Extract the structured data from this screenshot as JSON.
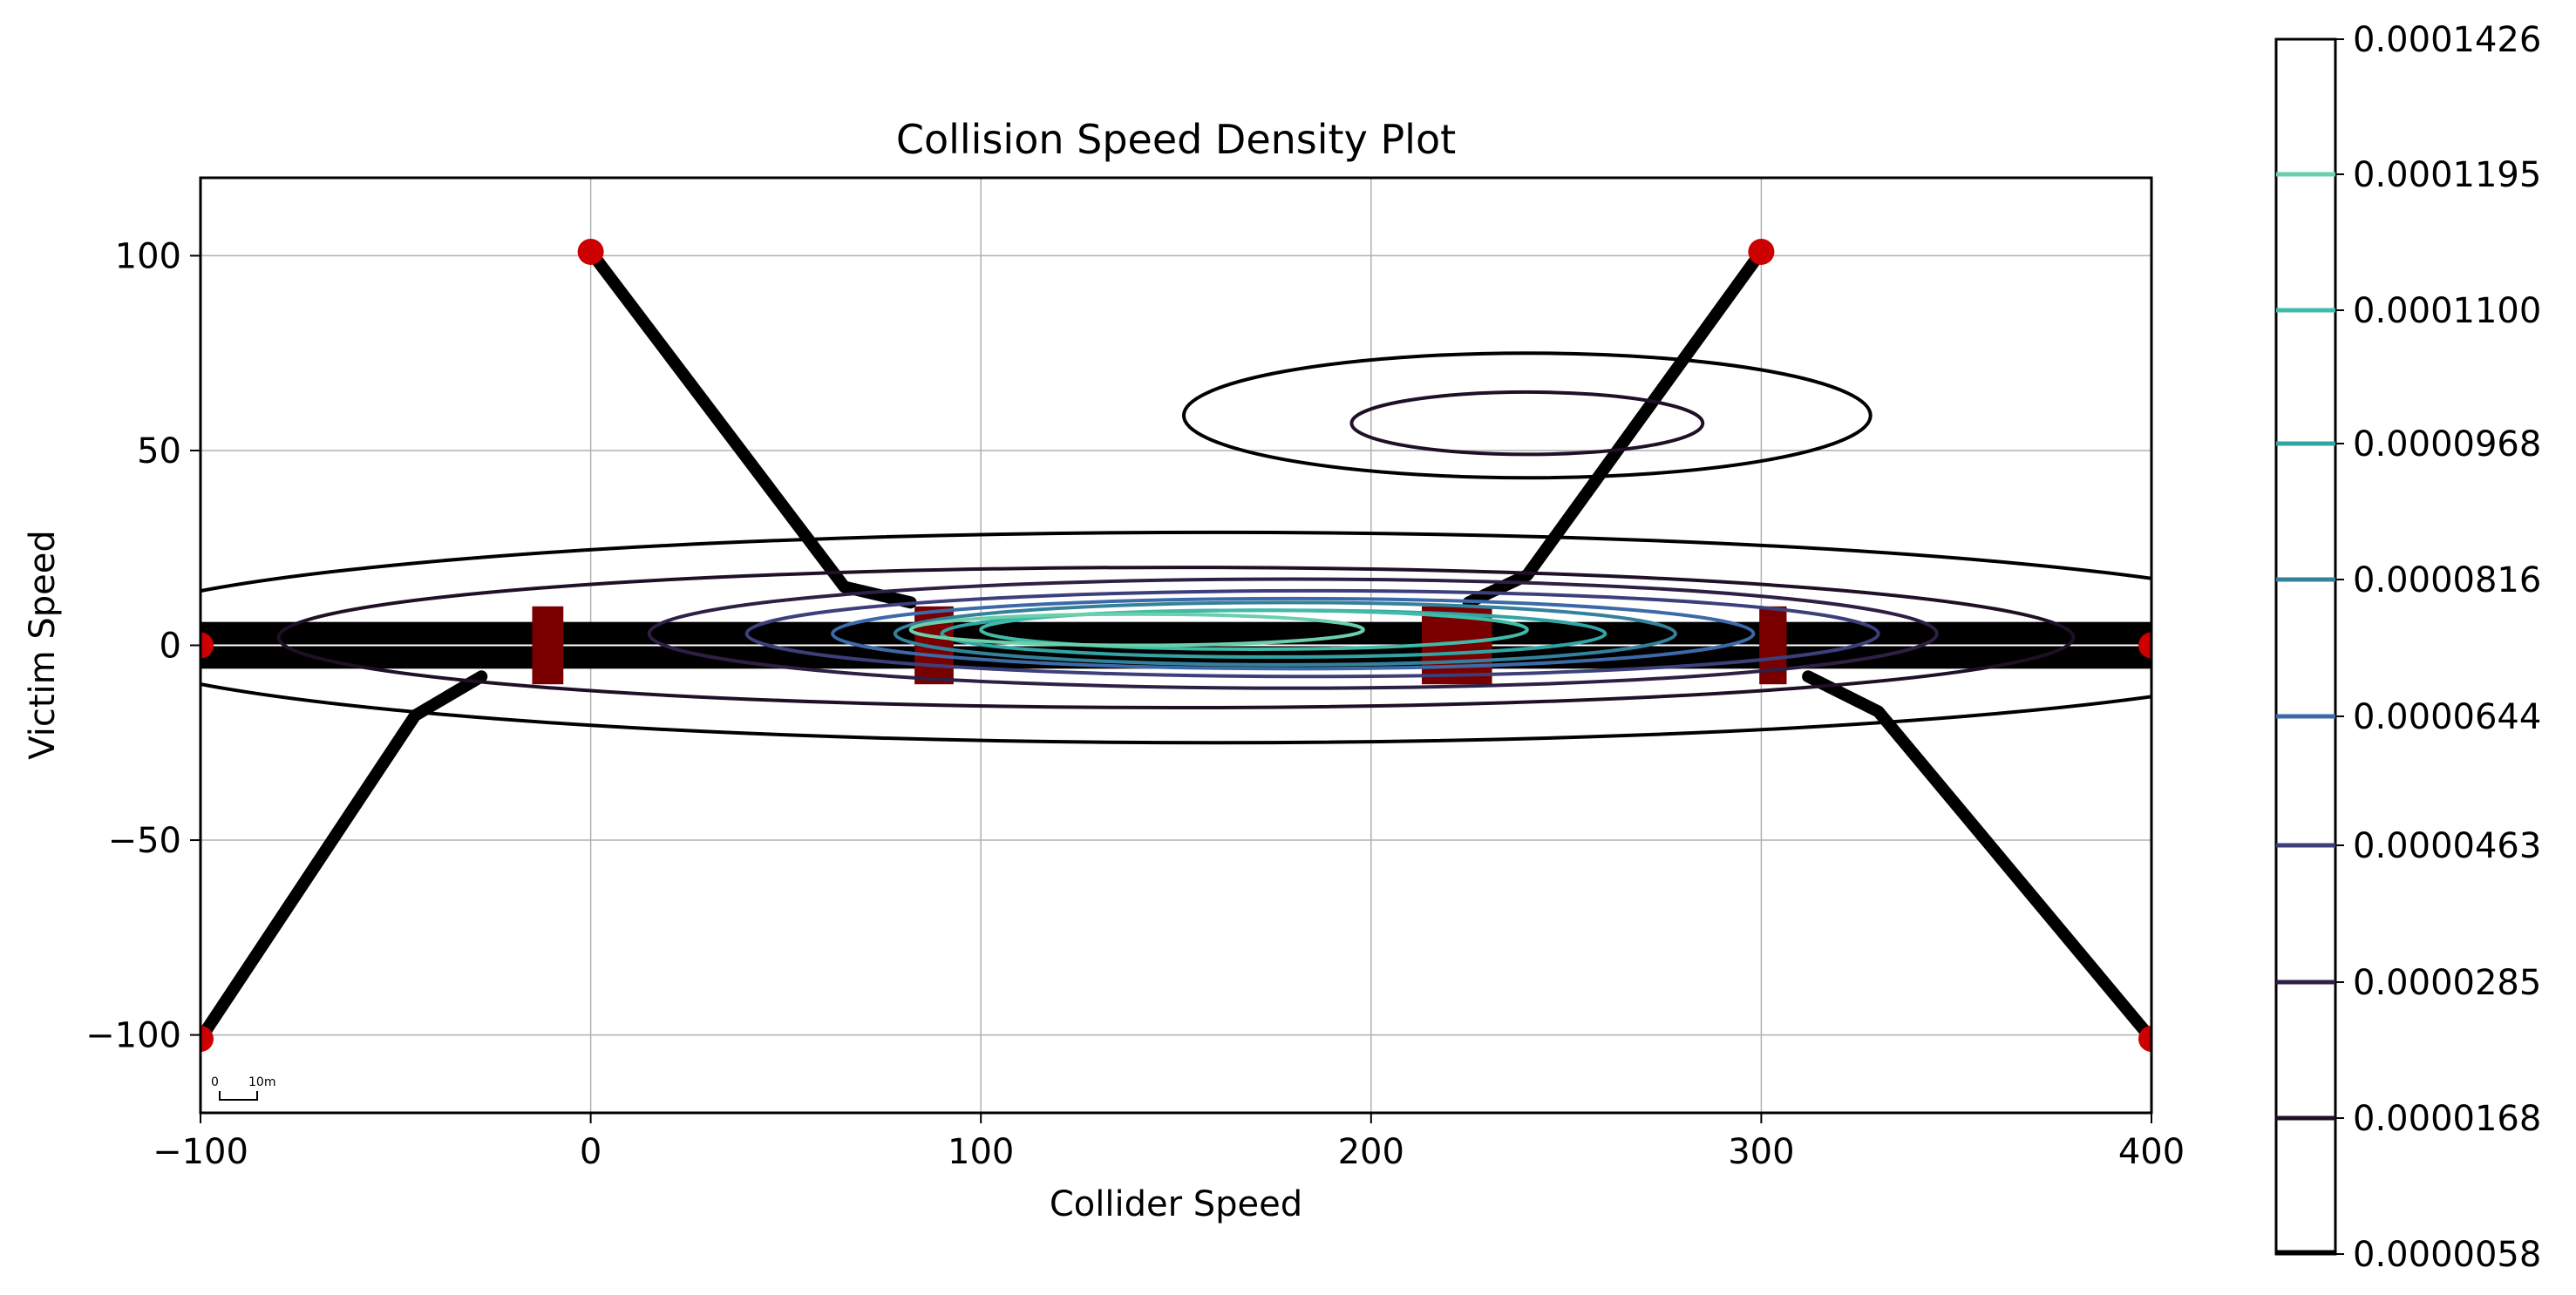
{
  "chart_data": {
    "type": "contour",
    "title": "Collision Speed Density Plot",
    "xlabel": "Collider Speed",
    "ylabel": "Victim Speed",
    "xlim": [
      -100,
      400
    ],
    "ylim": [
      -120,
      120
    ],
    "x_ticks": [
      -100,
      0,
      100,
      200,
      300,
      400
    ],
    "x_tick_labels": [
      "−100",
      "0",
      "100",
      "200",
      "300",
      "400"
    ],
    "y_ticks": [
      100,
      50,
      0,
      -50,
      -100
    ],
    "y_tick_labels": [
      "100",
      "50",
      "0",
      "−50",
      "−100"
    ],
    "grid": true,
    "colorbar": {
      "levels": [
        "0.0000058",
        "0.0000168",
        "0.0000285",
        "0.0000463",
        "0.0000644",
        "0.0000816",
        "0.0000968",
        "0.0001100",
        "0.0001195",
        "0.0001426"
      ],
      "colors": [
        "#000000",
        "#1f1027",
        "#2e1f45",
        "#3d3f7a",
        "#3c6aa8",
        "#34819b",
        "#31a5a4",
        "#41bba8",
        "#6acfaa",
        "#ffffff"
      ]
    },
    "road_path": {
      "markers": [
        [
          -100,
          -101
        ],
        [
          0,
          101
        ],
        [
          300,
          101
        ],
        [
          400,
          -101
        ],
        [
          -100,
          0
        ],
        [
          400,
          0
        ]
      ],
      "marker_color": "#cc0000"
    },
    "scale_bar": {
      "labels": [
        "0",
        "10m"
      ]
    }
  }
}
